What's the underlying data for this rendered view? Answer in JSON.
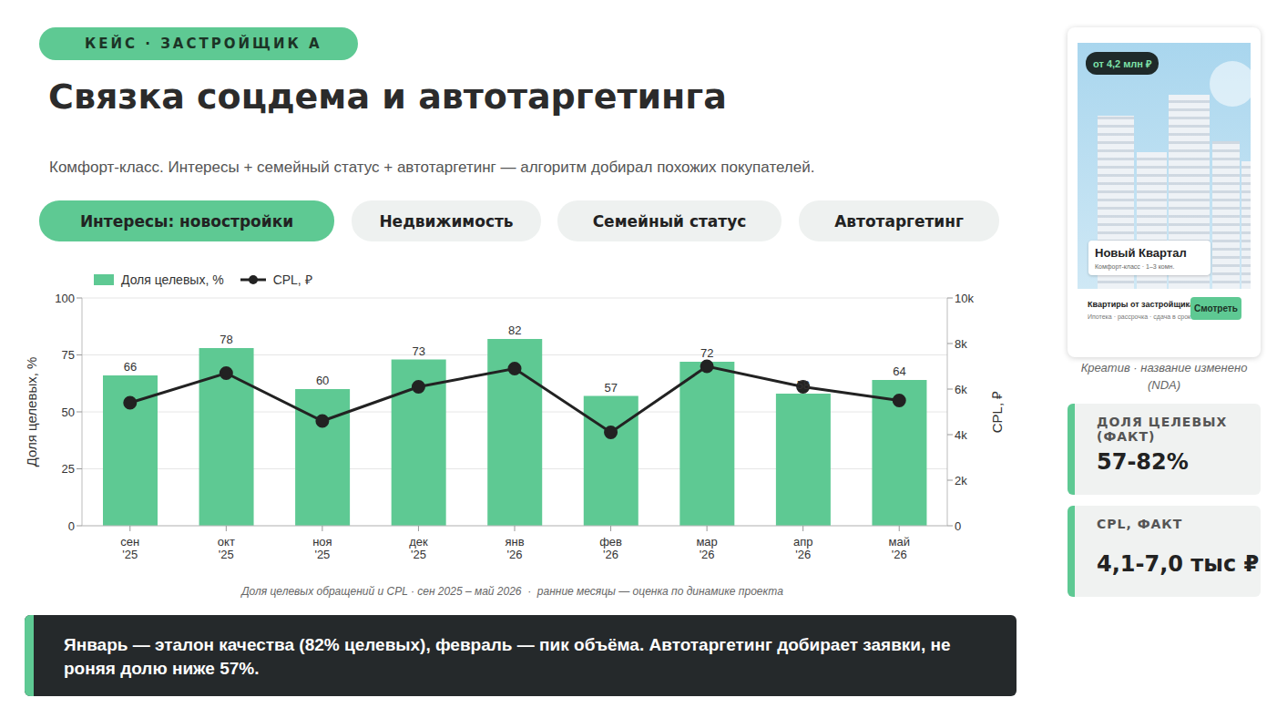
{
  "chart_data": {
    "type": "bar",
    "categories": [
      "сен '25",
      "окт '25",
      "ноя '25",
      "дек '25",
      "янв '26",
      "фев '26",
      "мар '26",
      "апр '26",
      "май '26"
    ],
    "series": [
      {
        "name": "Доля целевых, %",
        "type": "bar",
        "color": "#5ec993",
        "values": [
          66,
          78,
          60,
          73,
          82,
          57,
          72,
          58,
          64
        ]
      },
      {
        "name": "CPL, ₽",
        "type": "line",
        "axis": "y2",
        "color": "#222222",
        "marker": "circle",
        "line_style": "solid",
        "values": [
          5400,
          6700,
          4600,
          6100,
          6900,
          4100,
          7000,
          6100,
          5500
        ]
      }
    ],
    "ylabel": "Доля целевых, %",
    "y2label": "CPL, ₽",
    "ylim": [
      0,
      100
    ],
    "yticks": [
      0,
      25,
      50,
      75,
      100
    ],
    "y2lim": [
      0,
      10000
    ],
    "y2ticks": [
      0,
      {
        "value": 2000,
        "label": "2k"
      },
      {
        "value": 4000,
        "label": "4k"
      },
      {
        "value": 6000,
        "label": "6k"
      },
      {
        "value": 8000,
        "label": "8k"
      },
      {
        "value": 10000,
        "label": "10k"
      }
    ],
    "grid": true,
    "legend": "upper left",
    "data_labels": true,
    "caption": "Доля целевых обращений и CPL · сен 2025 – май 2026  ·  ранние месяцы — оценка по динамике проекта"
  },
  "slide": {
    "tag": "КЕЙС · ЗАСТРОЙЩИК А",
    "title": "Связка соцдема и автотаргетинга",
    "subtitle": "Комфорт-класс. Интересы + семейный статус + автотаргетинг — алгоритм добирал похожих покупателей.",
    "filters": [
      {
        "label": "Интересы: новостройки",
        "active": true
      },
      {
        "label": "Недвижимость",
        "active": false
      },
      {
        "label": "Семейный статус",
        "active": false
      },
      {
        "label": "Автотаргетинг",
        "active": false
      }
    ],
    "callout": "Январь — эталон качества (82% целевых), февраль — пик объёма. Автотаргетинг добирает заявки, не роняя долю ниже 57%.",
    "creative": {
      "price": "от 4,2 млн ₽",
      "name": "Новый Квартал",
      "name_sub": "Комфорт-класс · 1–3 комн.",
      "headline": "Квартиры от застройщика",
      "details": "Ипотека · рассрочка · сдача в срок",
      "button": "Смотреть",
      "caption": "Креатив · название изменено (NDA)"
    },
    "stats": [
      {
        "label": "ДОЛЯ ЦЕЛЕВЫХ (ФАКТ)",
        "value": "57-82%"
      },
      {
        "label": "CPL, ФАКТ",
        "value": "4,1-7,0 тыс ₽"
      }
    ]
  }
}
